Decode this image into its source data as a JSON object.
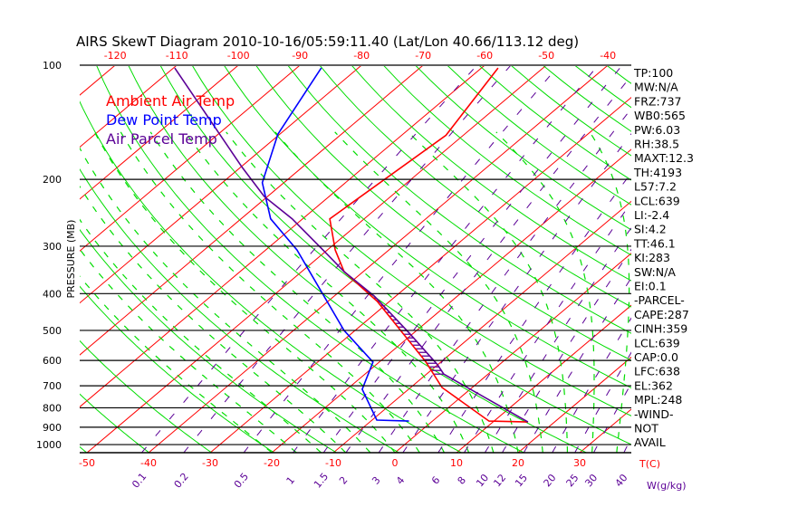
{
  "chart_data": {
    "type": "line",
    "subtype": "skew-t log-p",
    "title": "AIRS SkewT Diagram 2010-10-16/05:59:11.40 (Lat/Lon 40.66/113.12 deg)",
    "ylabel": "PRESSURE (MB)",
    "xlabel": "T(C)",
    "mixing_ratio_label": "W(g/kg)",
    "ylim_mb": [
      1050,
      100
    ],
    "pressure_ticks": [
      100,
      200,
      300,
      400,
      500,
      600,
      700,
      800,
      900,
      1000
    ],
    "top_temp_ticks": [
      -120,
      -110,
      -100,
      -90,
      -80,
      -70,
      -60,
      -50,
      -40
    ],
    "bottom_temp_ticks": [
      -50,
      -40,
      -30,
      -20,
      -10,
      0,
      10,
      20,
      30
    ],
    "mixing_ratio_ticks": [
      "0.1",
      "0.2",
      "0.5",
      "1",
      "1.5",
      "2",
      "3",
      "4",
      "6",
      "8",
      "10",
      "12",
      "15",
      "20",
      "25",
      "30",
      "40"
    ],
    "legend": [
      {
        "label": "Ambient Air Temp",
        "color": "#ff0000"
      },
      {
        "label": "Dew Point Temp",
        "color": "#0000ff"
      },
      {
        "label": "Air Parcel Temp",
        "color": "#5b0096"
      }
    ],
    "series": [
      {
        "name": "Ambient Air Temp",
        "color": "#ff0000",
        "points": [
          [
            15.7,
            872
          ],
          [
            9.2,
            867
          ],
          [
            -4.9,
            707
          ],
          [
            -12.4,
            606
          ],
          [
            -31.9,
            420
          ],
          [
            -43.1,
            350
          ],
          [
            -48.7,
            307
          ],
          [
            -55.6,
            254
          ],
          [
            -52.8,
            153
          ],
          [
            -57.3,
            101.7
          ]
        ]
      },
      {
        "name": "Dew Point Temp",
        "color": "#0000ff",
        "points": [
          [
            -3.8,
            867
          ],
          [
            -9.2,
            862
          ],
          [
            -17.5,
            715
          ],
          [
            -21,
            606
          ],
          [
            -31.8,
            500
          ],
          [
            -54.9,
            307
          ],
          [
            -65.2,
            254
          ],
          [
            -73.5,
            204
          ],
          [
            -80.3,
            152
          ],
          [
            -86,
            101.7
          ]
        ]
      },
      {
        "name": "Air Parcel Temp",
        "color": "#5b0096",
        "points": [
          [
            15.7,
            872
          ],
          [
            -7.2,
            652
          ],
          [
            -10,
            616
          ],
          [
            -20.6,
            509
          ],
          [
            -33.5,
            406
          ],
          [
            -43.1,
            350
          ],
          [
            -50.3,
            309
          ],
          [
            -61.7,
            254
          ],
          [
            -70.5,
            222
          ],
          [
            -79.7,
            186
          ],
          [
            -109.8,
            101.7
          ]
        ]
      }
    ],
    "cape_hatch_range_mb": [
      652,
      380
    ],
    "colors": {
      "isotherm": "#ff0000",
      "dry_adiabat": "#00dd00",
      "moist_adiabat": "#00dd00",
      "mixing_ratio": "#5b0096",
      "grid": "#000000"
    }
  },
  "stats": [
    "TP:100",
    "MW:N/A",
    "FRZ:737",
    "WB0:565",
    "PW:6.03",
    "RH:38.5",
    "MAXT:12.3",
    "TH:4193",
    "L57:7.2",
    "LCL:639",
    "LI:-2.4",
    "SI:4.2",
    "TT:46.1",
    "KI:283",
    "SW:N/A",
    "EI:0.1",
    "-PARCEL-",
    "CAPE:287",
    "CINH:359",
    "LCL:639",
    "CAP:0.0",
    "LFC:638",
    "EL:362",
    "MPL:248",
    "-WIND-",
    "NOT",
    "AVAIL"
  ]
}
